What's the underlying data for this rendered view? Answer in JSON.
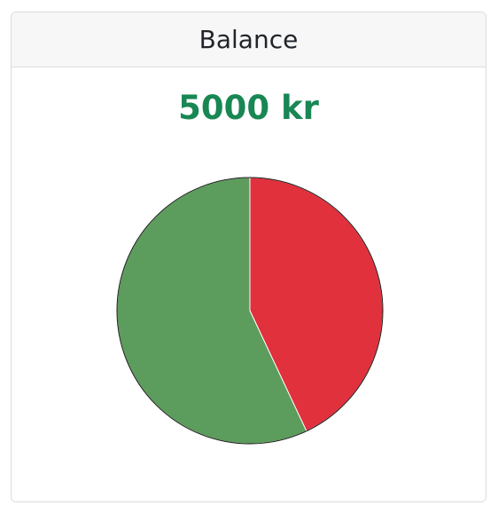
{
  "card": {
    "title": "Balance"
  },
  "balance": {
    "amount_text": "5000 kr"
  },
  "colors": {
    "amount": "#198754",
    "income_slice": "#5c9c5c",
    "expense_slice": "#e0313d"
  },
  "chart_data": {
    "type": "pie",
    "title": "",
    "slices": [
      {
        "value": 43,
        "color": "#e0313d"
      },
      {
        "value": 57,
        "color": "#5c9c5c"
      }
    ]
  }
}
